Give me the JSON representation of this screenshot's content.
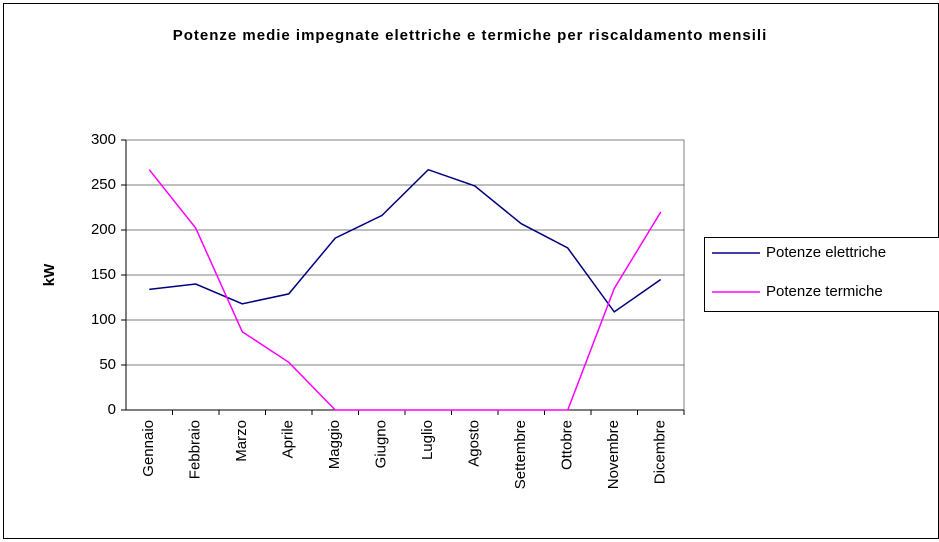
{
  "chart_data": {
    "type": "line",
    "title": "Potenze medie impegnate elettriche e termiche per riscaldamento mensili",
    "y_label": "kW",
    "categories": [
      "Gennaio",
      "Febbraio",
      "Marzo",
      "Aprile",
      "Maggio",
      "Giugno",
      "Luglio",
      "Agosto",
      "Settembre",
      "Ottobre",
      "Novembre",
      "Dicembre"
    ],
    "series": [
      {
        "name": "Potenze elettriche",
        "color": "#000080",
        "values": [
          134,
          140,
          118,
          129,
          191,
          216,
          267,
          249,
          207,
          180,
          109,
          145
        ]
      },
      {
        "name": "Potenze termiche",
        "color": "#ff00ff",
        "values": [
          267,
          202,
          87,
          53,
          0,
          0,
          0,
          0,
          0,
          0,
          135,
          220
        ]
      }
    ],
    "ylim": [
      0,
      300
    ],
    "yticks": [
      0,
      50,
      100,
      150,
      200,
      250,
      300
    ],
    "grid": true,
    "legend": "right"
  }
}
